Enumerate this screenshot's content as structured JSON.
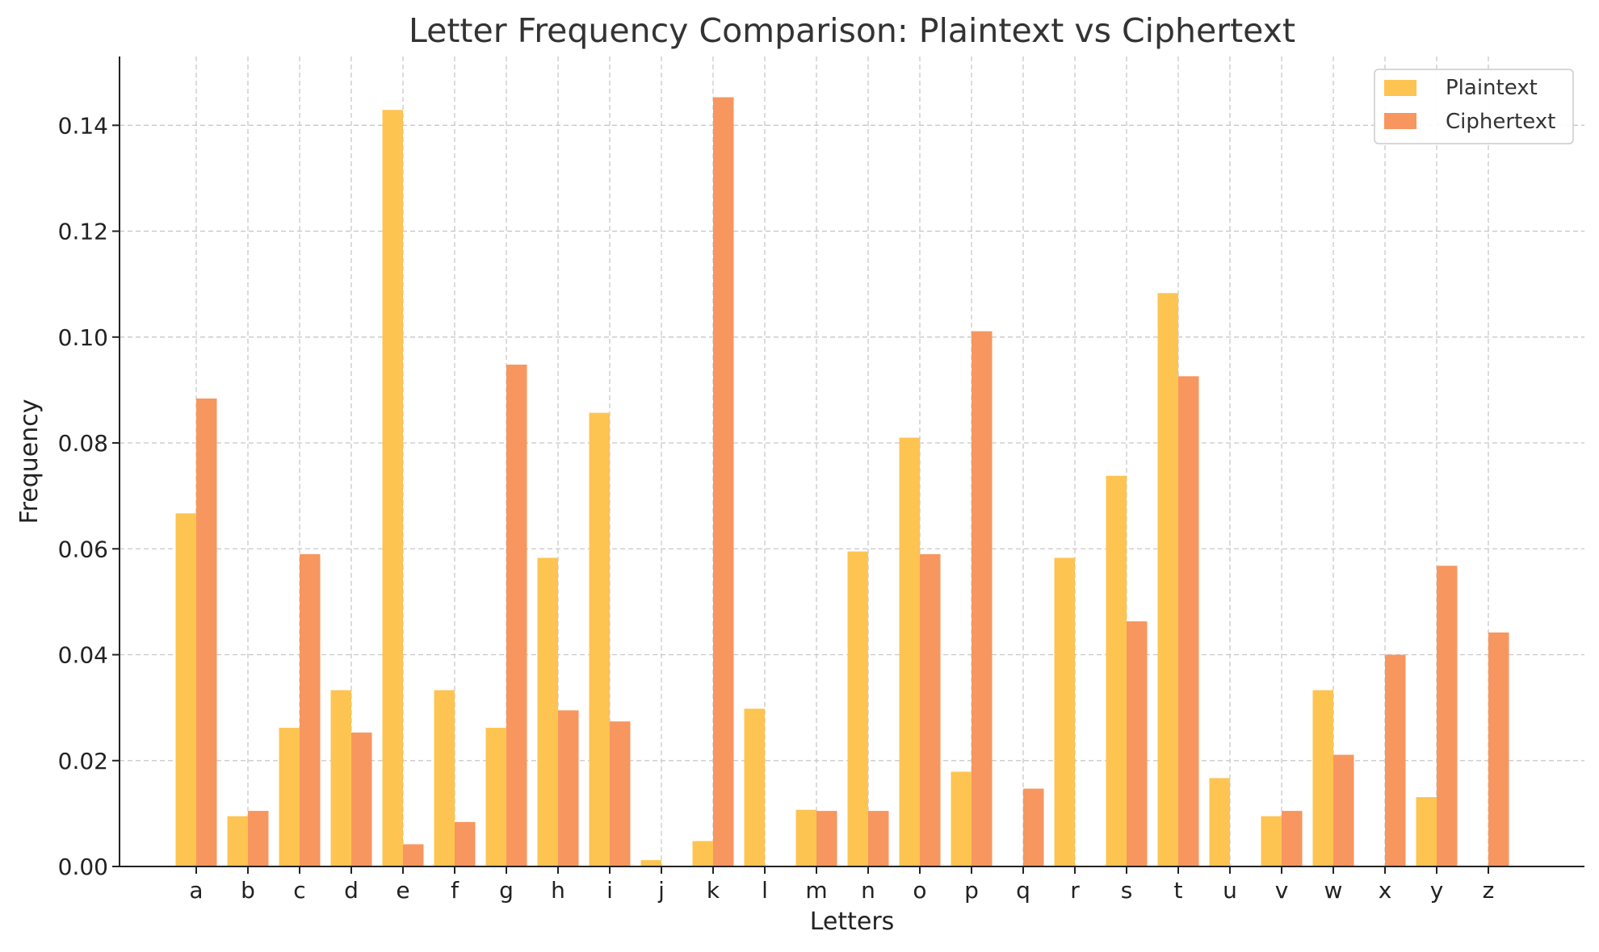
{
  "chart_data": {
    "type": "bar",
    "title": "Letter Frequency Comparison: Plaintext vs Ciphertext",
    "xlabel": "Letters",
    "ylabel": "Frequency",
    "ylim": [
      0,
      0.153
    ],
    "yticks": [
      "0.00",
      "0.02",
      "0.04",
      "0.06",
      "0.08",
      "0.10",
      "0.12",
      "0.14"
    ],
    "categories": [
      "a",
      "b",
      "c",
      "d",
      "e",
      "f",
      "g",
      "h",
      "i",
      "j",
      "k",
      "l",
      "m",
      "n",
      "o",
      "p",
      "q",
      "r",
      "s",
      "t",
      "u",
      "v",
      "w",
      "x",
      "y",
      "z"
    ],
    "series": [
      {
        "name": "Plaintext",
        "color": "#FDC452",
        "values": [
          0.0667,
          0.0095,
          0.0262,
          0.0333,
          0.1429,
          0.0333,
          0.0262,
          0.0583,
          0.0857,
          0.0012,
          0.0048,
          0.0298,
          0.0107,
          0.0595,
          0.081,
          0.0179,
          0.0,
          0.0583,
          0.0738,
          0.1083,
          0.0167,
          0.0095,
          0.0333,
          0.0,
          0.0131,
          0.0
        ]
      },
      {
        "name": "Ciphertext",
        "color": "#F7965F",
        "values": [
          0.0884,
          0.0105,
          0.059,
          0.0253,
          0.0042,
          0.0084,
          0.0948,
          0.0295,
          0.0274,
          0.0,
          0.1453,
          0.0,
          0.0105,
          0.0105,
          0.059,
          0.1011,
          0.0147,
          0.0,
          0.0463,
          0.0926,
          0.0,
          0.0105,
          0.0211,
          0.04,
          0.0568,
          0.0442
        ]
      }
    ],
    "grid": true,
    "legend_position": "top-right"
  }
}
